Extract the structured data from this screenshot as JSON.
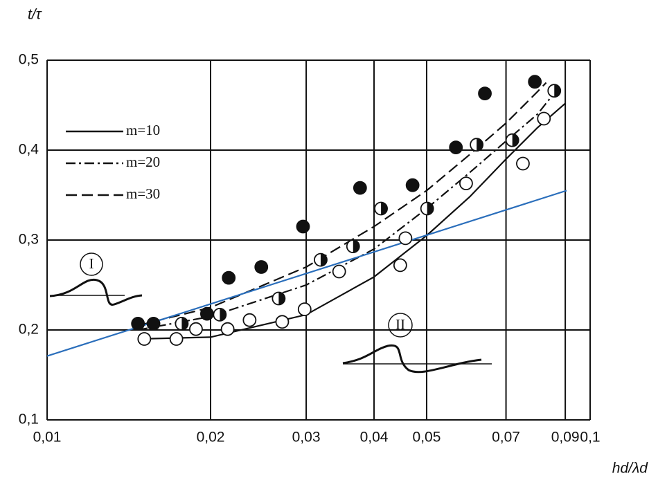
{
  "chart_data": {
    "type": "scatter",
    "y_label": "t/τ",
    "x_label": "hd/λd",
    "xscale": "log",
    "xlim": [
      0.01,
      0.1
    ],
    "ylim": [
      0.1,
      0.5
    ],
    "xticks": [
      {
        "value": 0.01,
        "label": "0,01"
      },
      {
        "value": 0.02,
        "label": "0,02"
      },
      {
        "value": 0.03,
        "label": "0,03"
      },
      {
        "value": 0.04,
        "label": "0,04"
      },
      {
        "value": 0.05,
        "label": "0,05"
      },
      {
        "value": 0.07,
        "label": "0,07"
      },
      {
        "value": 0.09,
        "label": "0,09"
      },
      {
        "value": 0.1,
        "label": "0,1"
      }
    ],
    "yticks": [
      {
        "value": 0.1,
        "label": "0,1"
      },
      {
        "value": 0.2,
        "label": "0,2"
      },
      {
        "value": 0.3,
        "label": "0,3"
      },
      {
        "value": 0.4,
        "label": "0,4"
      },
      {
        "value": 0.5,
        "label": "0,5"
      }
    ],
    "grid": true,
    "legend": "upper left",
    "series": [
      {
        "marker": "filled",
        "color": "#111111",
        "x": [
          0.0147,
          0.0157,
          0.0197,
          0.0216,
          0.0248,
          0.0296,
          0.0377,
          0.0471,
          0.0566,
          0.064,
          0.0791
        ],
        "values": [
          0.207,
          0.207,
          0.218,
          0.258,
          0.27,
          0.315,
          0.358,
          0.361,
          0.403,
          0.463,
          0.476
        ]
      },
      {
        "marker": "half",
        "color": "#111111",
        "x": [
          0.0177,
          0.0208,
          0.0267,
          0.0319,
          0.0366,
          0.0412,
          0.0501,
          0.0618,
          0.0719,
          0.0859
        ],
        "values": [
          0.207,
          0.217,
          0.235,
          0.278,
          0.293,
          0.335,
          0.335,
          0.406,
          0.411,
          0.466
        ]
      },
      {
        "marker": "open",
        "color": "#111111",
        "x": [
          0.0151,
          0.0173,
          0.0188,
          0.0215,
          0.0236,
          0.0271,
          0.0298,
          0.0345,
          0.0447,
          0.0457,
          0.0591,
          0.0752,
          0.0822
        ],
        "values": [
          0.19,
          0.19,
          0.201,
          0.201,
          0.211,
          0.209,
          0.223,
          0.265,
          0.272,
          0.302,
          0.363,
          0.385,
          0.435
        ]
      }
    ],
    "lines": [
      {
        "name": "m=10",
        "dash": "solid",
        "color": "#111111",
        "x": [
          0.0147,
          0.02,
          0.03,
          0.04,
          0.05,
          0.06,
          0.07,
          0.08,
          0.09
        ],
        "values": [
          0.19,
          0.192,
          0.217,
          0.259,
          0.305,
          0.348,
          0.39,
          0.425,
          0.452
        ]
      },
      {
        "name": "m=20",
        "dash": "dashdot",
        "color": "#111111",
        "x": [
          0.0147,
          0.02,
          0.03,
          0.04,
          0.05,
          0.06,
          0.07,
          0.08,
          0.085
        ],
        "values": [
          0.2,
          0.215,
          0.25,
          0.29,
          0.335,
          0.375,
          0.41,
          0.44,
          0.46
        ]
      },
      {
        "name": "m=30",
        "dash": "dashed",
        "color": "#111111",
        "x": [
          0.0147,
          0.02,
          0.03,
          0.04,
          0.05,
          0.06,
          0.07,
          0.08,
          0.083
        ],
        "values": [
          0.205,
          0.225,
          0.27,
          0.315,
          0.355,
          0.395,
          0.43,
          0.465,
          0.475
        ]
      },
      {
        "color": "#2a6ebb",
        "dash": "solid",
        "x": [
          0.01,
          0.0905
        ],
        "values": [
          0.171,
          0.355
        ]
      }
    ],
    "annotations": [
      {
        "text": "I"
      },
      {
        "text": "II"
      }
    ]
  }
}
